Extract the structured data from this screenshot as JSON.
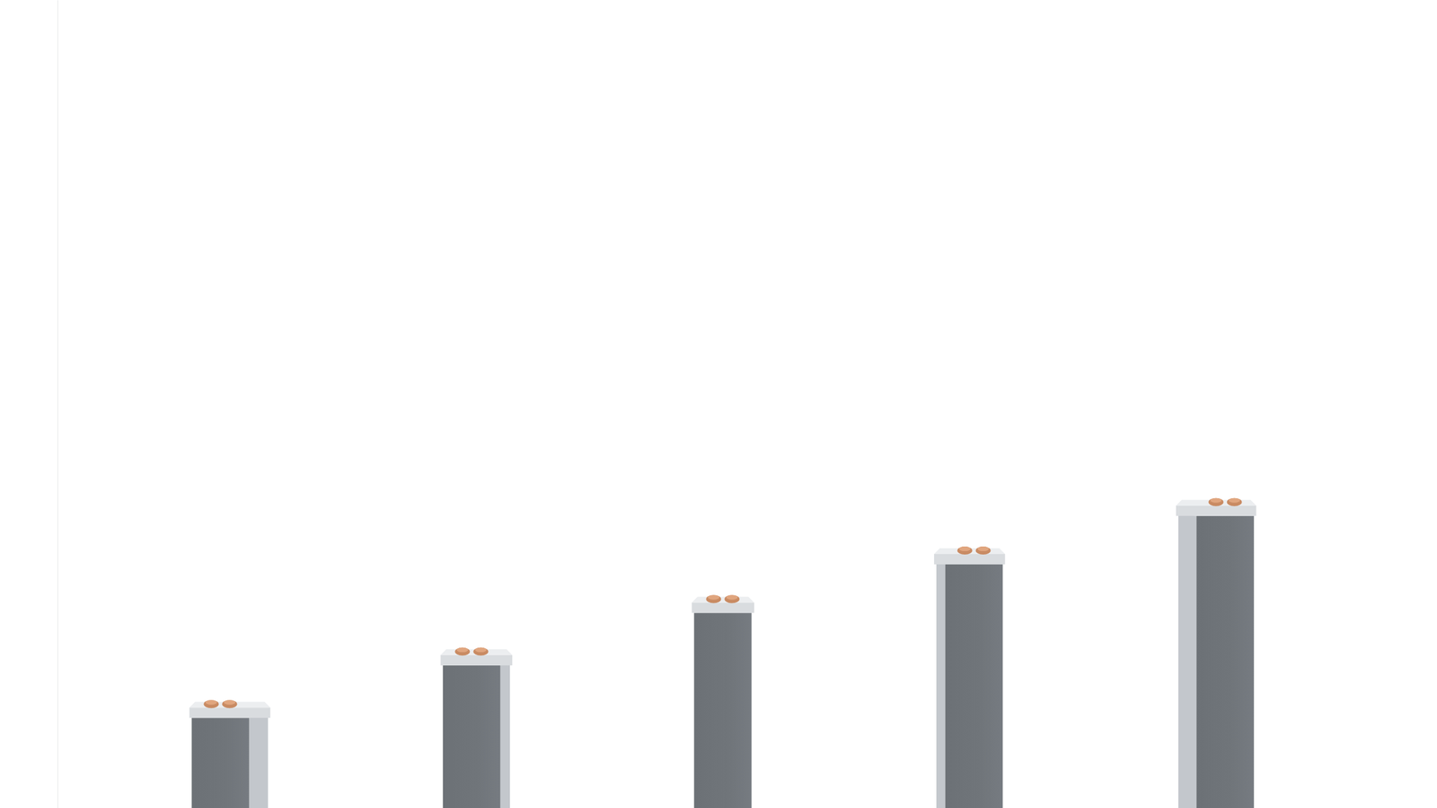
{
  "chart_data": {
    "type": "bar",
    "categories": [
      null,
      null,
      null,
      null,
      null
    ],
    "values": [
      13,
      19.5,
      26,
      32,
      38
    ],
    "color": "#70757a",
    "ylim": [
      0,
      100
    ],
    "tick_labels": false,
    "grid": false
  }
}
